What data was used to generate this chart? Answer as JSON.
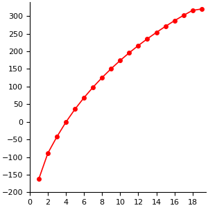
{
  "x": [
    1,
    2,
    3,
    4,
    5,
    6,
    7,
    8,
    9,
    10,
    11,
    12,
    13,
    14,
    15,
    16,
    17,
    18,
    19
  ],
  "y": [
    -161.5,
    -88.6,
    -42.1,
    -0.5,
    36.1,
    68.7,
    98.4,
    125.7,
    150.8,
    174.1,
    195.9,
    216.3,
    235.4,
    253.5,
    270.6,
    286.8,
    301.8,
    316.0,
    320.0
  ],
  "line_color": "#ff0000",
  "marker": "o",
  "marker_size": 4,
  "xlim": [
    0,
    19.5
  ],
  "ylim": [
    -200,
    340
  ],
  "xticks": [
    0,
    2,
    4,
    6,
    8,
    10,
    12,
    14,
    16,
    18
  ],
  "yticks": [
    -200,
    -150,
    -100,
    -50,
    0,
    50,
    100,
    150,
    200,
    250,
    300
  ],
  "figsize": [
    3.0,
    3.0
  ],
  "dpi": 100,
  "tick_labelsize": 8,
  "linewidth": 1.2
}
